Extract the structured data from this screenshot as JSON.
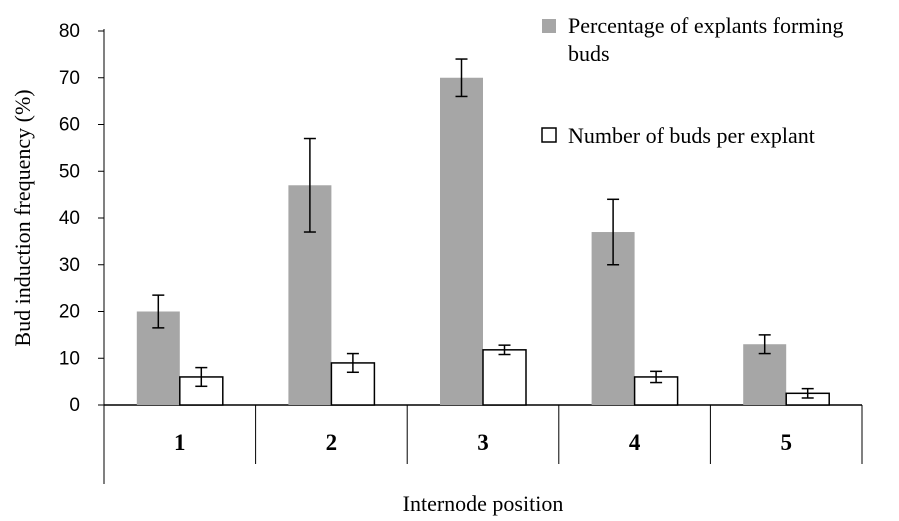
{
  "chart_data": {
    "type": "bar",
    "title": "",
    "xlabel": "Internode position",
    "ylabel": "Bud induction frequency (%)",
    "ylim": [
      0,
      80
    ],
    "yticks": [
      0,
      10,
      20,
      30,
      40,
      50,
      60,
      70,
      80
    ],
    "categories": [
      "1",
      "2",
      "3",
      "4",
      "5"
    ],
    "grid": false,
    "legend_position": "top-right",
    "series": [
      {
        "name": "Percentage of explants forming buds",
        "color": "#a6a6a6",
        "values": [
          20,
          47,
          70,
          37,
          13
        ],
        "errors": [
          3.5,
          10,
          4,
          7,
          2
        ]
      },
      {
        "name": "Number of buds per explant",
        "color": "#ffffff",
        "values": [
          6,
          9,
          11.8,
          6,
          2.5
        ],
        "errors": [
          2,
          2,
          1,
          1.2,
          1
        ]
      }
    ]
  }
}
